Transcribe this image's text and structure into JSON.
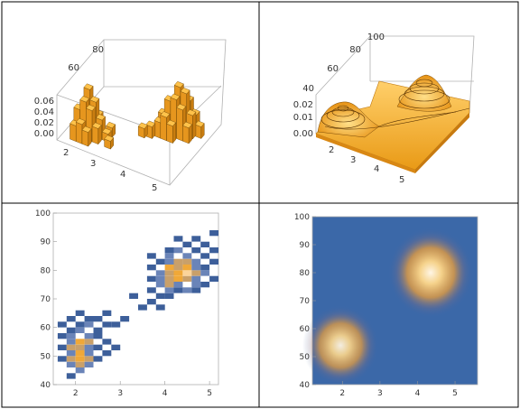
{
  "panel_titles": [
    "",
    "",
    "",
    ""
  ],
  "chart_data": [
    {
      "type": "3d-histogram",
      "title": "",
      "x_ticks": [
        "2",
        "3",
        "4",
        "5"
      ],
      "y_ticks": [
        "60",
        "80"
      ],
      "z_ticks": [
        "0.00",
        "0.02",
        "0.04",
        "0.06"
      ],
      "xlim": [
        1.5,
        5.2
      ],
      "ylim": [
        40,
        100
      ],
      "zlim": [
        0,
        0.07
      ],
      "bars": [
        {
          "x": 1.8,
          "y": 45,
          "z": 0.02
        },
        {
          "x": 2.0,
          "y": 45,
          "z": 0.025
        },
        {
          "x": 2.2,
          "y": 45,
          "z": 0.018
        },
        {
          "x": 1.8,
          "y": 50,
          "z": 0.035
        },
        {
          "x": 2.0,
          "y": 50,
          "z": 0.048
        },
        {
          "x": 2.2,
          "y": 50,
          "z": 0.04
        },
        {
          "x": 2.4,
          "y": 50,
          "z": 0.02
        },
        {
          "x": 1.8,
          "y": 55,
          "z": 0.03
        },
        {
          "x": 2.0,
          "y": 55,
          "z": 0.058
        },
        {
          "x": 2.2,
          "y": 55,
          "z": 0.045
        },
        {
          "x": 2.4,
          "y": 55,
          "z": 0.025
        },
        {
          "x": 2.0,
          "y": 60,
          "z": 0.03
        },
        {
          "x": 2.2,
          "y": 60,
          "z": 0.022
        },
        {
          "x": 2.6,
          "y": 60,
          "z": 0.012
        },
        {
          "x": 2.8,
          "y": 50,
          "z": 0.01
        },
        {
          "x": 2.6,
          "y": 55,
          "z": 0.01
        },
        {
          "x": 3.4,
          "y": 70,
          "z": 0.012
        },
        {
          "x": 3.6,
          "y": 72,
          "z": 0.015
        },
        {
          "x": 3.8,
          "y": 75,
          "z": 0.02
        },
        {
          "x": 4.0,
          "y": 75,
          "z": 0.03
        },
        {
          "x": 4.2,
          "y": 75,
          "z": 0.022
        },
        {
          "x": 3.8,
          "y": 80,
          "z": 0.025
        },
        {
          "x": 4.0,
          "y": 80,
          "z": 0.045
        },
        {
          "x": 4.2,
          "y": 80,
          "z": 0.05
        },
        {
          "x": 4.4,
          "y": 80,
          "z": 0.04
        },
        {
          "x": 4.6,
          "y": 80,
          "z": 0.02
        },
        {
          "x": 4.0,
          "y": 85,
          "z": 0.035
        },
        {
          "x": 4.2,
          "y": 85,
          "z": 0.06
        },
        {
          "x": 4.4,
          "y": 85,
          "z": 0.055
        },
        {
          "x": 4.6,
          "y": 85,
          "z": 0.03
        },
        {
          "x": 4.2,
          "y": 90,
          "z": 0.03
        },
        {
          "x": 4.4,
          "y": 90,
          "z": 0.04
        },
        {
          "x": 4.6,
          "y": 90,
          "z": 0.025
        },
        {
          "x": 4.8,
          "y": 88,
          "z": 0.015
        }
      ]
    },
    {
      "type": "3d-surface",
      "title": "",
      "x_ticks": [
        "2",
        "3",
        "4",
        "5"
      ],
      "y_ticks": [
        "40",
        "60",
        "80",
        "100"
      ],
      "z_ticks": [
        "0.00",
        "0.01",
        "0.02"
      ],
      "xlim": [
        1.5,
        5.5
      ],
      "ylim": [
        40,
        100
      ],
      "zlim": [
        0,
        0.025
      ],
      "peaks": [
        {
          "x": 2.0,
          "y": 54,
          "height": 0.018
        },
        {
          "x": 4.3,
          "y": 80,
          "height": 0.026
        }
      ]
    },
    {
      "type": "heatmap",
      "title": "",
      "x_ticks": [
        "2",
        "3",
        "4",
        "5"
      ],
      "y_ticks": [
        "40",
        "50",
        "60",
        "70",
        "80",
        "90",
        "100"
      ],
      "xlim": [
        1.5,
        5.2
      ],
      "ylim": [
        40,
        100
      ],
      "cell_size": {
        "x": 0.2,
        "y": 2
      },
      "cells": [
        {
          "x": 1.8,
          "y": 42,
          "v": 1
        },
        {
          "x": 2.0,
          "y": 44,
          "v": 2
        },
        {
          "x": 1.8,
          "y": 46,
          "v": 2
        },
        {
          "x": 2.0,
          "y": 46,
          "v": 3
        },
        {
          "x": 2.2,
          "y": 46,
          "v": 2
        },
        {
          "x": 1.6,
          "y": 48,
          "v": 1
        },
        {
          "x": 1.8,
          "y": 48,
          "v": 3
        },
        {
          "x": 2.0,
          "y": 48,
          "v": 4
        },
        {
          "x": 2.2,
          "y": 48,
          "v": 3
        },
        {
          "x": 2.4,
          "y": 48,
          "v": 1
        },
        {
          "x": 1.8,
          "y": 50,
          "v": 2
        },
        {
          "x": 2.0,
          "y": 50,
          "v": 4
        },
        {
          "x": 2.2,
          "y": 50,
          "v": 2
        },
        {
          "x": 2.6,
          "y": 50,
          "v": 1
        },
        {
          "x": 1.6,
          "y": 52,
          "v": 1
        },
        {
          "x": 1.8,
          "y": 52,
          "v": 3
        },
        {
          "x": 2.0,
          "y": 52,
          "v": 3
        },
        {
          "x": 2.2,
          "y": 52,
          "v": 2
        },
        {
          "x": 2.4,
          "y": 52,
          "v": 1
        },
        {
          "x": 2.8,
          "y": 52,
          "v": 1
        },
        {
          "x": 1.8,
          "y": 54,
          "v": 2
        },
        {
          "x": 2.0,
          "y": 54,
          "v": 4
        },
        {
          "x": 2.2,
          "y": 54,
          "v": 3
        },
        {
          "x": 2.6,
          "y": 54,
          "v": 1
        },
        {
          "x": 1.6,
          "y": 56,
          "v": 1
        },
        {
          "x": 1.8,
          "y": 56,
          "v": 2
        },
        {
          "x": 2.2,
          "y": 56,
          "v": 2
        },
        {
          "x": 2.4,
          "y": 56,
          "v": 1
        },
        {
          "x": 1.8,
          "y": 58,
          "v": 1
        },
        {
          "x": 2.0,
          "y": 58,
          "v": 2
        },
        {
          "x": 2.4,
          "y": 58,
          "v": 1
        },
        {
          "x": 1.6,
          "y": 60,
          "v": 1
        },
        {
          "x": 2.0,
          "y": 60,
          "v": 1
        },
        {
          "x": 2.2,
          "y": 60,
          "v": 2
        },
        {
          "x": 2.6,
          "y": 60,
          "v": 1
        },
        {
          "x": 2.8,
          "y": 60,
          "v": 1
        },
        {
          "x": 1.8,
          "y": 62,
          "v": 1
        },
        {
          "x": 2.2,
          "y": 62,
          "v": 1
        },
        {
          "x": 2.4,
          "y": 62,
          "v": 1
        },
        {
          "x": 3.0,
          "y": 62,
          "v": 1
        },
        {
          "x": 2.0,
          "y": 64,
          "v": 1
        },
        {
          "x": 2.6,
          "y": 64,
          "v": 1
        },
        {
          "x": 3.4,
          "y": 66,
          "v": 1
        },
        {
          "x": 3.8,
          "y": 66,
          "v": 1
        },
        {
          "x": 3.6,
          "y": 68,
          "v": 1
        },
        {
          "x": 3.2,
          "y": 70,
          "v": 1
        },
        {
          "x": 3.8,
          "y": 70,
          "v": 1
        },
        {
          "x": 4.0,
          "y": 70,
          "v": 1
        },
        {
          "x": 3.6,
          "y": 72,
          "v": 1
        },
        {
          "x": 4.0,
          "y": 72,
          "v": 2
        },
        {
          "x": 4.2,
          "y": 72,
          "v": 1
        },
        {
          "x": 4.4,
          "y": 72,
          "v": 2
        },
        {
          "x": 4.6,
          "y": 72,
          "v": 1
        },
        {
          "x": 3.8,
          "y": 74,
          "v": 2
        },
        {
          "x": 4.0,
          "y": 74,
          "v": 3
        },
        {
          "x": 4.2,
          "y": 74,
          "v": 2
        },
        {
          "x": 4.6,
          "y": 74,
          "v": 2
        },
        {
          "x": 4.8,
          "y": 74,
          "v": 1
        },
        {
          "x": 3.6,
          "y": 76,
          "v": 1
        },
        {
          "x": 3.8,
          "y": 76,
          "v": 2
        },
        {
          "x": 4.0,
          "y": 76,
          "v": 3
        },
        {
          "x": 4.2,
          "y": 76,
          "v": 4
        },
        {
          "x": 4.4,
          "y": 76,
          "v": 3
        },
        {
          "x": 4.6,
          "y": 76,
          "v": 2
        },
        {
          "x": 5.0,
          "y": 76,
          "v": 1
        },
        {
          "x": 3.8,
          "y": 78,
          "v": 2
        },
        {
          "x": 4.0,
          "y": 78,
          "v": 3
        },
        {
          "x": 4.2,
          "y": 78,
          "v": 4
        },
        {
          "x": 4.4,
          "y": 78,
          "v": 5
        },
        {
          "x": 4.6,
          "y": 78,
          "v": 3
        },
        {
          "x": 4.8,
          "y": 78,
          "v": 2
        },
        {
          "x": 3.6,
          "y": 80,
          "v": 1
        },
        {
          "x": 4.0,
          "y": 80,
          "v": 4
        },
        {
          "x": 4.2,
          "y": 80,
          "v": 3
        },
        {
          "x": 4.4,
          "y": 80,
          "v": 4
        },
        {
          "x": 4.6,
          "y": 80,
          "v": 2
        },
        {
          "x": 4.8,
          "y": 80,
          "v": 1
        },
        {
          "x": 3.8,
          "y": 82,
          "v": 1
        },
        {
          "x": 4.0,
          "y": 82,
          "v": 2
        },
        {
          "x": 4.2,
          "y": 82,
          "v": 3
        },
        {
          "x": 4.4,
          "y": 82,
          "v": 3
        },
        {
          "x": 4.6,
          "y": 82,
          "v": 2
        },
        {
          "x": 5.0,
          "y": 82,
          "v": 1
        },
        {
          "x": 3.6,
          "y": 84,
          "v": 1
        },
        {
          "x": 4.0,
          "y": 84,
          "v": 2
        },
        {
          "x": 4.4,
          "y": 84,
          "v": 2
        },
        {
          "x": 4.8,
          "y": 84,
          "v": 1
        },
        {
          "x": 4.0,
          "y": 86,
          "v": 1
        },
        {
          "x": 4.2,
          "y": 86,
          "v": 2
        },
        {
          "x": 4.6,
          "y": 86,
          "v": 1
        },
        {
          "x": 5.0,
          "y": 86,
          "v": 1
        },
        {
          "x": 4.4,
          "y": 88,
          "v": 1
        },
        {
          "x": 4.8,
          "y": 88,
          "v": 1
        },
        {
          "x": 4.2,
          "y": 90,
          "v": 1
        },
        {
          "x": 4.6,
          "y": 90,
          "v": 1
        },
        {
          "x": 5.0,
          "y": 92,
          "v": 1
        }
      ],
      "colors": [
        "#3d5f9a",
        "#6a84b8",
        "#c9a06a",
        "#f0a838",
        "#fbd49a"
      ]
    },
    {
      "type": "density",
      "title": "",
      "x_ticks": [
        "2",
        "3",
        "4",
        "5"
      ],
      "y_ticks": [
        "40",
        "50",
        "60",
        "70",
        "80",
        "90",
        "100"
      ],
      "xlim": [
        1.2,
        5.6
      ],
      "ylim": [
        40,
        100
      ],
      "background": "#3b68a8",
      "peaks": [
        {
          "x": 1.95,
          "y": 54,
          "height": 0.75
        },
        {
          "x": 4.35,
          "y": 80,
          "height": 1.0
        }
      ]
    }
  ]
}
